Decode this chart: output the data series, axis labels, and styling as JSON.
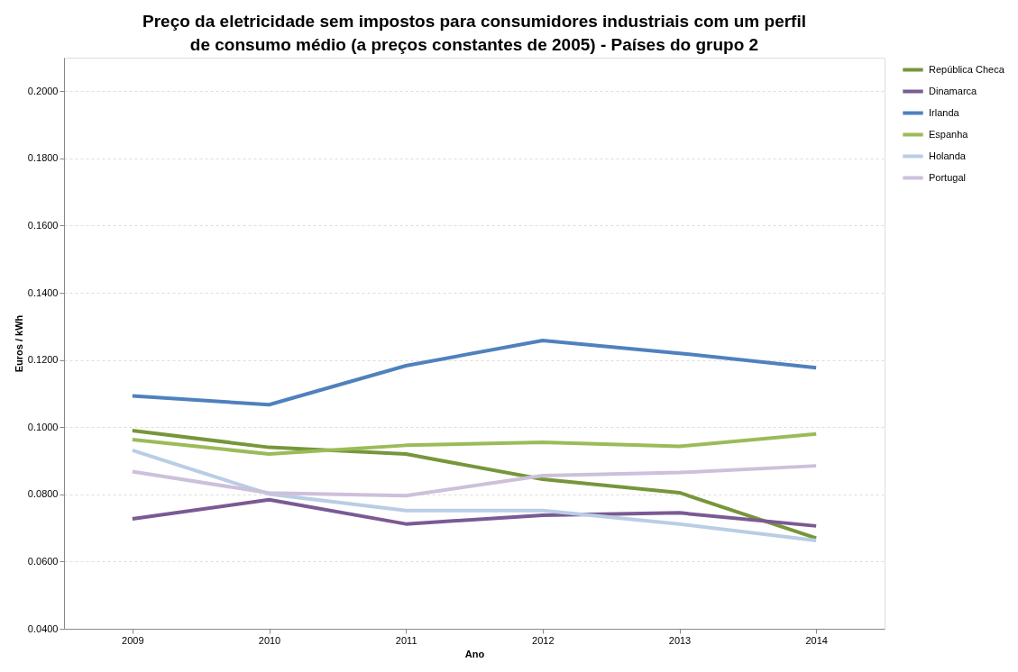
{
  "chart_data": {
    "type": "line",
    "title": "Preço da eletricidade sem impostos para consumidores industriais com um perfil de consumo médio (a preços constantes de 2005) - Países do grupo 2",
    "xlabel": "Ano",
    "ylabel": "Euros / kWh",
    "categories": [
      "2009",
      "2010",
      "2011",
      "2012",
      "2013",
      "2014"
    ],
    "series": [
      {
        "name": "República Checa",
        "color": "#77963b",
        "values": [
          0.099,
          0.094,
          0.092,
          0.0845,
          0.0805,
          0.067
        ]
      },
      {
        "name": "Dinamarca",
        "color": "#7a5a94",
        "values": [
          0.0727,
          0.0784,
          0.0712,
          0.0738,
          0.0745,
          0.0706
        ]
      },
      {
        "name": "Irlanda",
        "color": "#4f81bd",
        "values": [
          0.1093,
          0.1067,
          0.1183,
          0.1258,
          0.122,
          0.1177
        ]
      },
      {
        "name": "Espanha",
        "color": "#9bbb59",
        "values": [
          0.0963,
          0.092,
          0.0946,
          0.0955,
          0.0943,
          0.098
        ]
      },
      {
        "name": "Holanda",
        "color": "#b9cde5",
        "values": [
          0.0931,
          0.0801,
          0.0752,
          0.0752,
          0.0712,
          0.0663
        ]
      },
      {
        "name": "Portugal",
        "color": "#ccc0da",
        "values": [
          0.0868,
          0.0804,
          0.0796,
          0.0856,
          0.0865,
          0.0885
        ]
      }
    ],
    "ylim": [
      0.04,
      0.21
    ],
    "yticks": [
      {
        "value": 0.04,
        "label": "0.0400"
      },
      {
        "value": 0.06,
        "label": "0.0600"
      },
      {
        "value": 0.08,
        "label": "0.0800"
      },
      {
        "value": 0.1,
        "label": "0.1000"
      },
      {
        "value": 0.12,
        "label": "0.1200"
      },
      {
        "value": 0.14,
        "label": "0.1400"
      },
      {
        "value": 0.16,
        "label": "0.1600"
      },
      {
        "value": 0.18,
        "label": "0.1800"
      },
      {
        "value": 0.2,
        "label": "0.2000"
      }
    ],
    "grid": "y",
    "legend": "right",
    "marker": "none",
    "line_style": "solid"
  }
}
